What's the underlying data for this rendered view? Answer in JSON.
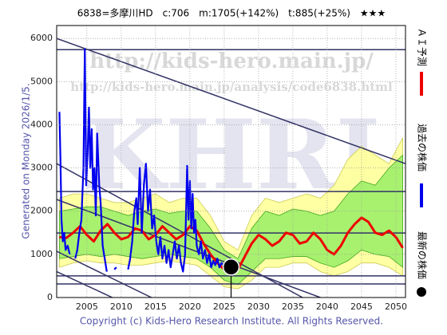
{
  "chart_data": {
    "type": "stock-forecast",
    "title": "6838=多摩川HD　c:706　m:1705(+142%)　t:885(+25%)　★★★",
    "side_note": "Generated on Monday 2026/1/5.",
    "footer": "Copyright (c) Kids-Hero Research Institute. All Rights Reserved.",
    "watermarks": [
      "http://kids-hero.main.jp/",
      "http://kids-hero.main.jp/analysis/code6838.html",
      "KHRI"
    ],
    "xlim": [
      2000.6,
      2051.4
    ],
    "ylim": [
      0,
      6300
    ],
    "xticks": [
      2005,
      2010,
      2015,
      2020,
      2025,
      2030,
      2035,
      2040,
      2045,
      2050
    ],
    "yticks": [
      0,
      1000,
      2000,
      3000,
      4000,
      5000,
      6000
    ],
    "grid": true,
    "legend": "right",
    "bands": {
      "x": [
        2001,
        2003,
        2005,
        2007,
        2009,
        2011,
        2013,
        2015,
        2017,
        2019,
        2021,
        2023,
        2025,
        2027,
        2029,
        2031,
        2033,
        2035,
        2037,
        2039,
        2041,
        2043,
        2045,
        2047,
        2049,
        2051
      ],
      "outer_color": "#ffff99",
      "outer_upper": [
        2300,
        2400,
        2400,
        2300,
        2200,
        2200,
        2300,
        2400,
        2200,
        2300,
        2300,
        1900,
        1300,
        1100,
        1900,
        2300,
        2200,
        2300,
        2400,
        2300,
        2600,
        3200,
        3500,
        3300,
        3100,
        3700
      ],
      "outer_lower": [
        700,
        800,
        850,
        800,
        800,
        750,
        750,
        800,
        850,
        800,
        750,
        500,
        250,
        200,
        400,
        700,
        700,
        800,
        800,
        600,
        500,
        600,
        800,
        800,
        700,
        500
      ],
      "inner_color": "#99ee66",
      "inner_upper": [
        2000,
        2050,
        2100,
        2100,
        2000,
        1900,
        2000,
        2050,
        1950,
        2000,
        2000,
        1600,
        1100,
        900,
        1600,
        2000,
        1900,
        2050,
        2000,
        1900,
        2000,
        2400,
        2700,
        2600,
        3000,
        3300
      ],
      "inner_lower": [
        900,
        950,
        1000,
        950,
        1000,
        950,
        900,
        950,
        1000,
        950,
        900,
        700,
        400,
        300,
        600,
        900,
        900,
        950,
        950,
        800,
        700,
        850,
        1100,
        1000,
        950,
        700
      ]
    },
    "levels": [
      5740,
      2455,
      1495,
      500,
      314
    ],
    "trend_lines": [
      {
        "x": [
          2000.6,
          2051.4
        ],
        "values": [
          6000,
          3100
        ]
      },
      {
        "x": [
          2000.6,
          2036.4
        ],
        "values": [
          3100,
          0
        ]
      },
      {
        "x": [
          2000.6,
          2039.0
        ],
        "values": [
          2270,
          0
        ]
      },
      {
        "x": [
          2000.6,
          2014.4
        ],
        "values": [
          1070,
          0
        ]
      },
      {
        "x": [
          2000.6,
          2008.7
        ],
        "values": [
          600,
          0
        ]
      }
    ],
    "series": [
      {
        "name": "ＡＩ予測",
        "color": "#ee0000",
        "x": [
          2001,
          2002,
          2003,
          2004,
          2005,
          2006,
          2007,
          2008,
          2009,
          2010,
          2011,
          2012,
          2013,
          2014,
          2015,
          2016,
          2017,
          2018,
          2019,
          2020,
          2021,
          2022,
          2023,
          2024,
          2025,
          2026,
          2027,
          2028,
          2029,
          2030,
          2031,
          2032,
          2033,
          2034,
          2035,
          2036,
          2037,
          2038,
          2039,
          2040,
          2041,
          2042,
          2043,
          2044,
          2045,
          2046,
          2047,
          2048,
          2049,
          2050,
          2051
        ],
        "values": [
          1400,
          1380,
          1500,
          1650,
          1450,
          1300,
          1550,
          1700,
          1500,
          1350,
          1400,
          1600,
          1550,
          1350,
          1450,
          1650,
          1500,
          1350,
          1450,
          1650,
          1550,
          1250,
          1000,
          800,
          650,
          550,
          650,
          950,
          1250,
          1450,
          1350,
          1200,
          1300,
          1500,
          1450,
          1250,
          1300,
          1500,
          1350,
          1100,
          1000,
          1200,
          1500,
          1700,
          1850,
          1750,
          1500,
          1450,
          1550,
          1400,
          1150
        ]
      },
      {
        "name": "過去の株価",
        "color": "#0000ee",
        "x": [
          2001.0,
          2001.15,
          2001.3,
          2001.5,
          2001.7,
          2001.9,
          2002.2,
          2002.5,
          2002.8,
          2003.3,
          2003.6,
          2003.9,
          2004.2,
          2004.5,
          2004.7,
          2004.9,
          2005.1,
          2005.3,
          2005.5,
          2005.7,
          2005.9,
          2006.1,
          2006.3,
          2006.5,
          2006.8,
          2007.0,
          2007.3,
          2007.6,
          2007.9,
          2008.1,
          2009.0,
          2009.3,
          2009.6,
          2011.0,
          2011.3,
          2011.6,
          2011.9,
          2012.2,
          2012.4,
          2012.7,
          2013.0,
          2013.3,
          2013.6,
          2013.9,
          2014.2,
          2014.5,
          2014.8,
          2015.1,
          2015.4,
          2015.7,
          2016.0,
          2016.3,
          2016.6,
          2016.9,
          2017.2,
          2017.5,
          2017.8,
          2018.1,
          2018.4,
          2018.7,
          2019.0,
          2019.3,
          2019.6,
          2019.8,
          2020.0,
          2020.2,
          2020.4,
          2020.6,
          2020.8,
          2021.0,
          2021.3,
          2021.6,
          2021.9,
          2022.2,
          2022.5,
          2022.8,
          2023.1,
          2023.4,
          2023.7,
          2024.0,
          2024.3,
          2024.6,
          2024.9,
          2025.2,
          2025.5
        ],
        "values": [
          4300,
          3200,
          1800,
          1300,
          1500,
          1100,
          1200,
          1000,
          null,
          900,
          1100,
          1500,
          1800,
          3000,
          5750,
          2600,
          3300,
          4400,
          3000,
          3900,
          2500,
          3000,
          1900,
          3800,
          2600,
          2200,
          1200,
          900,
          600,
          null,
          650,
          700,
          null,
          650,
          900,
          1300,
          2000,
          2300,
          1700,
          3000,
          1500,
          2600,
          3100,
          2000,
          2500,
          1600,
          1900,
          1300,
          1000,
          1400,
          900,
          1200,
          800,
          1100,
          700,
          1000,
          1300,
          900,
          1200,
          800,
          600,
          1000,
          3050,
          1800,
          2700,
          1600,
          2400,
          1500,
          1800,
          1200,
          1000,
          1300,
          900,
          1100,
          800,
          1000,
          700,
          850,
          750,
          900,
          700,
          800,
          750,
          800,
          720
        ]
      }
    ],
    "latest": {
      "name": "最新の株価",
      "color": "#000000",
      "x": 2026.0,
      "value": 706
    }
  }
}
